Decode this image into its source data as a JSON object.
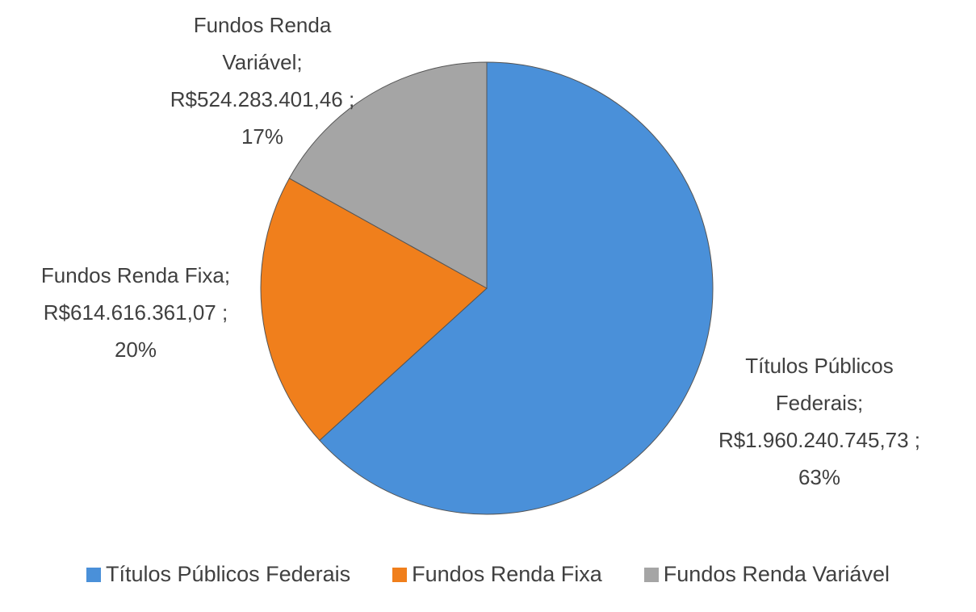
{
  "chart_data": {
    "type": "pie",
    "categories": [
      "Títulos Públicos Federais",
      "Fundos Renda Fixa",
      "Fundos Renda Variável"
    ],
    "values": [
      1960240745.73,
      614616361.07,
      524283401.46
    ],
    "value_labels": [
      "Títulos Públicos Federais; R$1.960.240.745,73 ; 63%",
      "Fundos Renda Fixa; R$614.616.361,07 ; 20%",
      "Fundos Renda Variável; R$524.283.401,46 ; 17%"
    ],
    "colors": [
      "#4a90d9",
      "#f07f1c",
      "#a5a5a5"
    ],
    "legend": "bottom"
  }
}
